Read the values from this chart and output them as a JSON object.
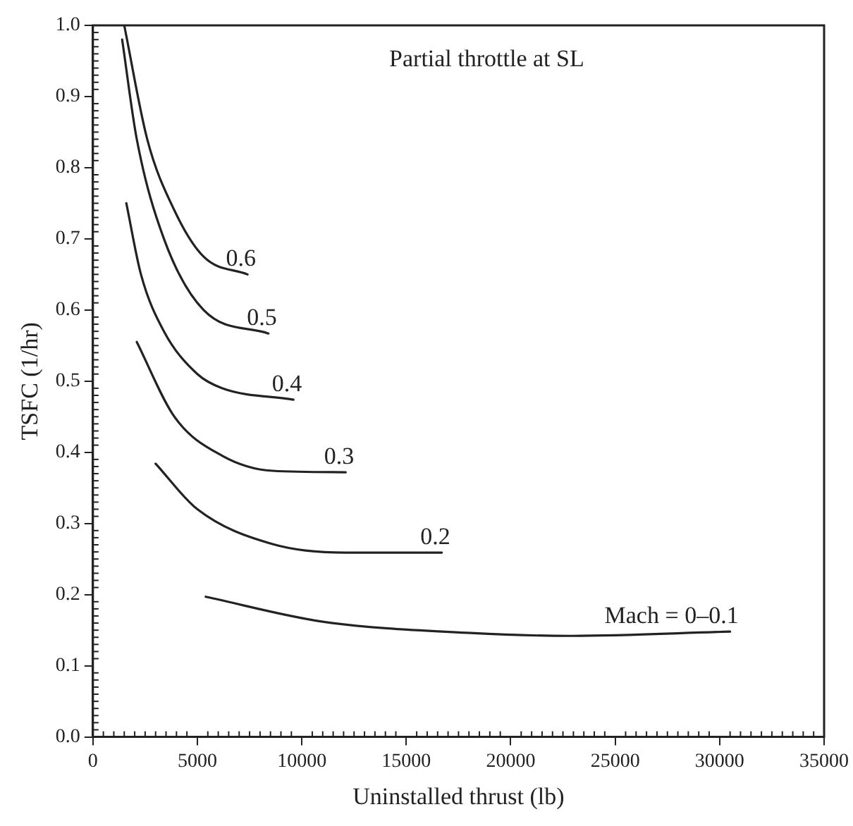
{
  "chart_data": {
    "type": "line",
    "xlabel": "Uninstalled thrust (lb)",
    "ylabel": "TSFC (1/hr)",
    "annotations": [
      "Partial throttle at SL"
    ],
    "xlim": [
      0,
      35000
    ],
    "xticks": [
      0,
      5000,
      10000,
      15000,
      20000,
      25000,
      30000,
      35000
    ],
    "ylim": [
      0,
      1
    ],
    "yticks": [
      {
        "value": 0,
        "label": "0.0"
      },
      {
        "value": 0.1,
        "label": "0.1"
      },
      {
        "value": 0.2,
        "label": "0.2"
      },
      {
        "value": 0.3,
        "label": "0.3"
      },
      {
        "value": 0.4,
        "label": "0.4"
      },
      {
        "value": 0.5,
        "label": "0.5"
      },
      {
        "value": 0.6,
        "label": "0.6"
      },
      {
        "value": 0.7,
        "label": "0.7"
      },
      {
        "value": 0.8,
        "label": "0.8"
      },
      {
        "value": 0.9,
        "label": "0.9"
      },
      {
        "value": 1,
        "label": "1.0"
      }
    ],
    "grid": false,
    "legend": false,
    "marker": "none",
    "series": [
      {
        "name": "0.6",
        "color": "#222222",
        "x": [
          1500,
          2600,
          3900,
          5300,
          7400
        ],
        "values": [
          1.0,
          0.84,
          0.74,
          0.675,
          0.65
        ]
      },
      {
        "name": "0.5",
        "color": "#222222",
        "x": [
          1400,
          2100,
          3400,
          5300,
          8400
        ],
        "values": [
          0.98,
          0.84,
          0.7,
          0.6,
          0.567
        ]
      },
      {
        "name": "0.4",
        "color": "#222222",
        "x": [
          1600,
          2300,
          3400,
          5000,
          6200,
          9600
        ],
        "values": [
          0.75,
          0.65,
          0.57,
          0.51,
          0.49,
          0.474
        ]
      },
      {
        "name": "0.3",
        "color": "#222222",
        "x": [
          2100,
          3900,
          6200,
          8600,
          12100
        ],
        "values": [
          0.555,
          0.45,
          0.395,
          0.374,
          0.372
        ]
      },
      {
        "name": "0.2",
        "color": "#222222",
        "x": [
          3000,
          5000,
          8600,
          12100,
          16700
        ],
        "values": [
          0.384,
          0.32,
          0.271,
          0.259,
          0.259
        ]
      },
      {
        "name": "Mach = 0–0.1",
        "color": "#222222",
        "x": [
          5400,
          11000,
          18100,
          22900,
          30500
        ],
        "values": [
          0.197,
          0.162,
          0.146,
          0.142,
          0.148
        ]
      }
    ]
  }
}
